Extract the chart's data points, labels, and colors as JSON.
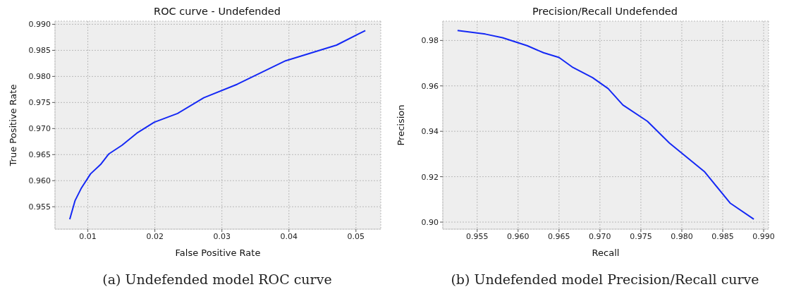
{
  "chart_data": [
    {
      "type": "line",
      "title": "ROC curve - Undefended",
      "xlabel": "False Positive Rate",
      "ylabel": "True Positive Rate",
      "annotations": [
        "(a) Undefended model ROC curve"
      ],
      "x": [
        0.0073,
        0.0081,
        0.009,
        0.0104,
        0.0119,
        0.0131,
        0.0151,
        0.0173,
        0.0199,
        0.0234,
        0.0273,
        0.0323,
        0.0395,
        0.0471,
        0.0514
      ],
      "series": [
        {
          "color": "#1428f5",
          "values": [
            0.9526,
            0.9562,
            0.9585,
            0.9613,
            0.9631,
            0.9651,
            0.9668,
            0.9691,
            0.9712,
            0.9729,
            0.9759,
            0.9785,
            0.983,
            0.986,
            0.9888
          ]
        }
      ],
      "xlim": [
        0.0051,
        0.0537
      ],
      "xticks": [
        {
          "value": 0.01,
          "label": "0.01"
        },
        {
          "value": 0.02,
          "label": "0.02"
        },
        {
          "value": 0.03,
          "label": "0.03"
        },
        {
          "value": 0.04,
          "label": "0.04"
        },
        {
          "value": 0.05,
          "label": "0.05"
        }
      ],
      "ylim": [
        0.9507,
        0.9906
      ],
      "yticks": [
        {
          "value": 0.955,
          "label": "0.955"
        },
        {
          "value": 0.96,
          "label": "0.960"
        },
        {
          "value": 0.965,
          "label": "0.965"
        },
        {
          "value": 0.97,
          "label": "0.970"
        },
        {
          "value": 0.975,
          "label": "0.975"
        },
        {
          "value": 0.98,
          "label": "0.980"
        },
        {
          "value": 0.985,
          "label": "0.985"
        },
        {
          "value": 0.99,
          "label": "0.990"
        }
      ],
      "grid": true,
      "line_style": "solid"
    },
    {
      "type": "line",
      "title": "Precision/Recall Undefended",
      "xlabel": "Recall",
      "ylabel": "Precision",
      "annotations": [
        "(b) Undefended model Precision/Recall curve"
      ],
      "x": [
        0.9526,
        0.956,
        0.9581,
        0.9611,
        0.9631,
        0.965,
        0.9667,
        0.9691,
        0.971,
        0.9728,
        0.9758,
        0.9785,
        0.9828,
        0.9859,
        0.9888
      ],
      "series": [
        {
          "color": "#1428f5",
          "values": [
            0.9844,
            0.9828,
            0.9812,
            0.9777,
            0.9746,
            0.9725,
            0.9681,
            0.9636,
            0.9588,
            0.9516,
            0.9444,
            0.9348,
            0.9221,
            0.9084,
            0.9013
          ]
        }
      ],
      "xlim": [
        0.9508,
        0.9906
      ],
      "xticks": [
        {
          "value": 0.955,
          "label": "0.955"
        },
        {
          "value": 0.96,
          "label": "0.960"
        },
        {
          "value": 0.965,
          "label": "0.965"
        },
        {
          "value": 0.97,
          "label": "0.970"
        },
        {
          "value": 0.975,
          "label": "0.975"
        },
        {
          "value": 0.98,
          "label": "0.980"
        },
        {
          "value": 0.985,
          "label": "0.985"
        },
        {
          "value": 0.99,
          "label": "0.990"
        }
      ],
      "ylim": [
        0.8969,
        0.9885
      ],
      "yticks": [
        {
          "value": 0.9,
          "label": "0.90"
        },
        {
          "value": 0.92,
          "label": "0.92"
        },
        {
          "value": 0.94,
          "label": "0.94"
        },
        {
          "value": 0.96,
          "label": "0.96"
        },
        {
          "value": 0.98,
          "label": "0.98"
        }
      ],
      "grid": true,
      "line_style": "solid"
    }
  ]
}
